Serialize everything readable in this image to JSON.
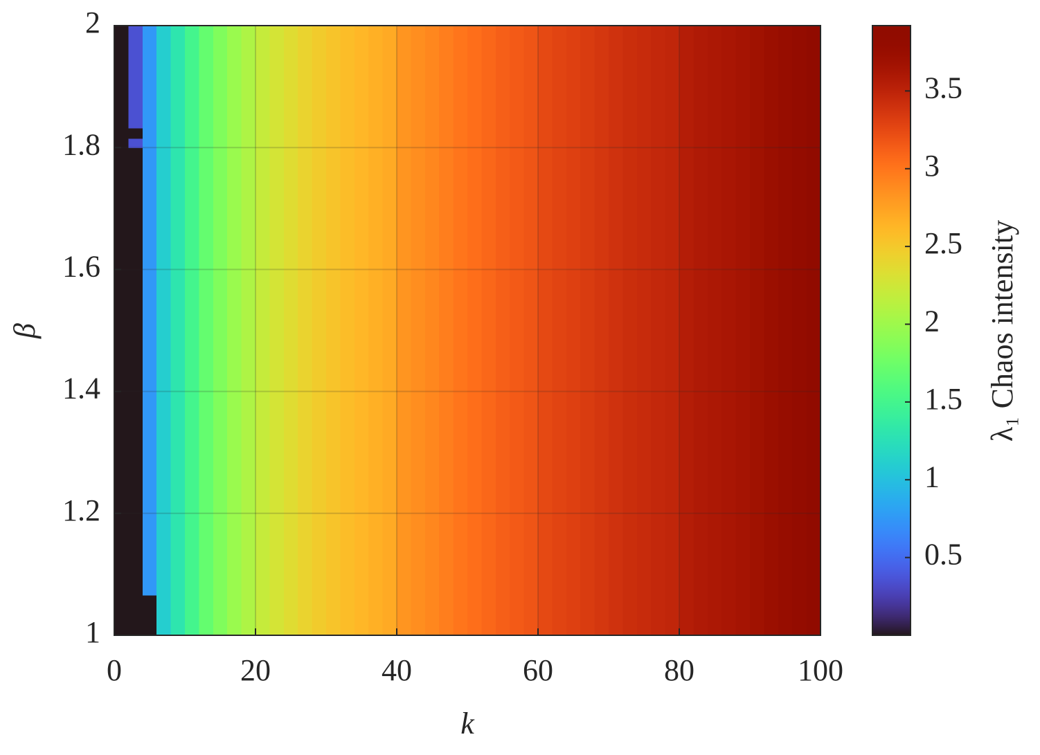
{
  "chart_data": {
    "type": "heatmap",
    "xlabel": "k",
    "ylabel": "β",
    "colorbar_label": "λ₁ Chaos intensity",
    "colormap": "turbo",
    "grid": true,
    "x_edges": [
      0,
      2,
      4,
      6,
      8,
      10,
      12,
      14,
      16,
      18,
      20,
      22,
      24,
      26,
      28,
      30,
      32,
      34,
      36,
      38,
      40,
      42,
      44,
      46,
      48,
      50,
      52,
      54,
      56,
      58,
      60,
      62,
      64,
      66,
      68,
      70,
      72,
      74,
      76,
      78,
      80,
      82,
      84,
      86,
      88,
      90,
      92,
      94,
      96,
      98,
      100
    ],
    "y_edges": [
      1,
      1.066,
      1.8,
      1.815,
      1.832,
      2
    ],
    "z": [
      [
        0,
        0,
        0,
        1.1,
        1.3,
        1.5,
        1.7,
        1.85,
        1.98,
        2.08,
        2.2,
        2.28,
        2.35,
        2.42,
        2.48,
        2.53,
        2.58,
        2.62,
        2.66,
        2.7,
        2.82,
        2.86,
        2.9,
        2.95,
        3.0,
        3.04,
        3.08,
        3.12,
        3.15,
        3.18,
        3.25,
        3.28,
        3.3,
        3.33,
        3.36,
        3.39,
        3.42,
        3.44,
        3.46,
        3.48,
        3.55,
        3.58,
        3.6,
        3.62,
        3.65,
        3.68,
        3.72,
        3.76,
        3.8,
        3.85
      ],
      [
        0,
        0,
        0.75,
        1.1,
        1.3,
        1.5,
        1.7,
        1.85,
        1.98,
        2.08,
        2.2,
        2.28,
        2.35,
        2.42,
        2.48,
        2.53,
        2.58,
        2.62,
        2.66,
        2.7,
        2.82,
        2.86,
        2.9,
        2.95,
        3.0,
        3.04,
        3.08,
        3.12,
        3.15,
        3.18,
        3.25,
        3.28,
        3.3,
        3.33,
        3.36,
        3.39,
        3.42,
        3.44,
        3.46,
        3.48,
        3.55,
        3.58,
        3.6,
        3.62,
        3.65,
        3.68,
        3.72,
        3.76,
        3.8,
        3.85
      ],
      [
        0,
        0.35,
        0.75,
        1.1,
        1.3,
        1.5,
        1.7,
        1.85,
        1.98,
        2.08,
        2.2,
        2.28,
        2.35,
        2.42,
        2.48,
        2.53,
        2.58,
        2.62,
        2.66,
        2.7,
        2.82,
        2.86,
        2.9,
        2.95,
        3.0,
        3.04,
        3.08,
        3.12,
        3.15,
        3.18,
        3.25,
        3.28,
        3.3,
        3.33,
        3.36,
        3.39,
        3.42,
        3.44,
        3.46,
        3.48,
        3.55,
        3.58,
        3.6,
        3.62,
        3.65,
        3.68,
        3.72,
        3.76,
        3.8,
        3.85
      ],
      [
        0,
        0,
        0.75,
        1.1,
        1.3,
        1.5,
        1.7,
        1.85,
        1.98,
        2.08,
        2.2,
        2.28,
        2.35,
        2.42,
        2.48,
        2.53,
        2.58,
        2.62,
        2.66,
        2.7,
        2.82,
        2.86,
        2.9,
        2.95,
        3.0,
        3.04,
        3.08,
        3.12,
        3.15,
        3.18,
        3.25,
        3.28,
        3.3,
        3.33,
        3.36,
        3.39,
        3.42,
        3.44,
        3.46,
        3.48,
        3.55,
        3.58,
        3.6,
        3.62,
        3.65,
        3.68,
        3.72,
        3.76,
        3.8,
        3.85
      ],
      [
        0,
        0.35,
        0.75,
        1.1,
        1.3,
        1.5,
        1.7,
        1.85,
        1.98,
        2.08,
        2.2,
        2.28,
        2.35,
        2.42,
        2.48,
        2.53,
        2.58,
        2.62,
        2.66,
        2.7,
        2.82,
        2.86,
        2.9,
        2.95,
        3.0,
        3.04,
        3.08,
        3.12,
        3.15,
        3.18,
        3.25,
        3.28,
        3.3,
        3.33,
        3.36,
        3.39,
        3.42,
        3.44,
        3.46,
        3.48,
        3.55,
        3.58,
        3.6,
        3.62,
        3.65,
        3.68,
        3.72,
        3.76,
        3.8,
        3.85
      ]
    ],
    "xlim": [
      0,
      100
    ],
    "xticks": [
      0,
      20,
      40,
      60,
      80,
      100
    ],
    "ylim": [
      1,
      2
    ],
    "yticks": [
      1,
      1.2,
      1.4,
      1.6,
      1.8,
      2
    ],
    "clim": [
      0,
      3.92
    ],
    "cticks": [
      0.5,
      1,
      1.5,
      2,
      2.5,
      3,
      3.5
    ]
  }
}
